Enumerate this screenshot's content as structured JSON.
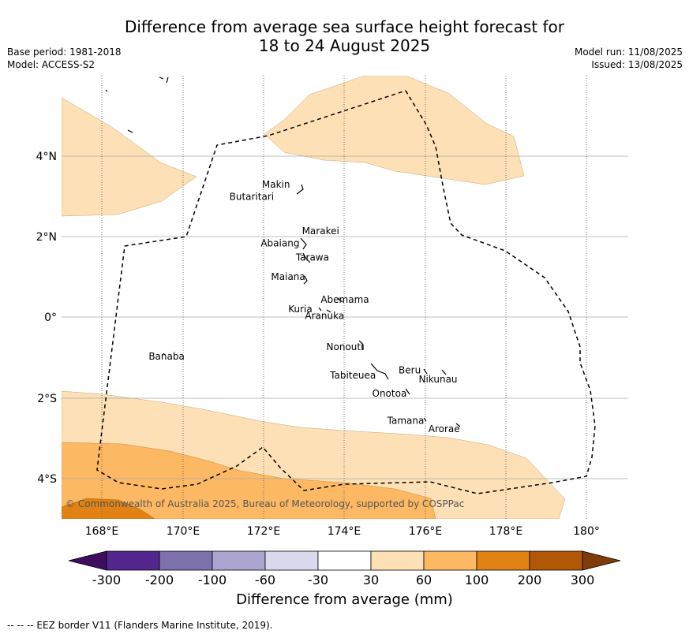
{
  "title_line1": "Difference from average sea surface height forecast for",
  "title_line2": "18 to 24 August 2025",
  "meta_left": {
    "base_period": "Base period: 1981-2018",
    "model": "Model: ACCESS-S2"
  },
  "meta_right": {
    "model_run": "Model run: 11/08/2025",
    "issued": "Issued: 13/08/2025"
  },
  "map": {
    "lon_ticks": [
      "168°E",
      "170°E",
      "172°E",
      "174°E",
      "176°E",
      "178°E",
      "180°"
    ],
    "lat_ticks": [
      "4°N",
      "2°N",
      "0°",
      "2°S",
      "4°S"
    ],
    "copyright": "© Commonwealth of Australia 2025, Bureau of Meteorology, supported by COSPPac",
    "places": [
      {
        "name": "Makin",
        "lon": 172.3,
        "lat": 3.2
      },
      {
        "name": "Butaritari",
        "lon": 171.7,
        "lat": 2.9
      },
      {
        "name": "Marakei",
        "lon": 173.4,
        "lat": 2.05
      },
      {
        "name": "Abaiang",
        "lon": 172.4,
        "lat": 1.75
      },
      {
        "name": "Tarawa",
        "lon": 173.2,
        "lat": 1.4
      },
      {
        "name": "Maiana",
        "lon": 172.6,
        "lat": 0.92
      },
      {
        "name": "Abemama",
        "lon": 174.0,
        "lat": 0.35
      },
      {
        "name": "Kuria",
        "lon": 172.9,
        "lat": 0.12
      },
      {
        "name": "Aranuka",
        "lon": 173.5,
        "lat": -0.05
      },
      {
        "name": "Banaba",
        "lon": 169.6,
        "lat": -1.05
      },
      {
        "name": "Nonouti",
        "lon": 174.0,
        "lat": -0.82
      },
      {
        "name": "Beru",
        "lon": 175.6,
        "lat": -1.4
      },
      {
        "name": "Nikunau",
        "lon": 176.3,
        "lat": -1.62
      },
      {
        "name": "Tabiteuea",
        "lon": 174.2,
        "lat": -1.52
      },
      {
        "name": "Onotoa",
        "lon": 175.1,
        "lat": -1.97
      },
      {
        "name": "Tamana",
        "lon": 175.5,
        "lat": -2.65
      },
      {
        "name": "Arorae",
        "lon": 176.45,
        "lat": -2.85
      }
    ]
  },
  "colorbar": {
    "ticks": [
      "-300",
      "-200",
      "-100",
      "-60",
      "-30",
      "30",
      "60",
      "100",
      "200",
      "300"
    ],
    "colors": [
      "#3f0c5f",
      "#54278f",
      "#7e71ad",
      "#aba5d0",
      "#d9d9ed",
      "#ffffff",
      "#fee0b6",
      "#fdb863",
      "#e08214",
      "#b35806",
      "#7f3b08"
    ],
    "label": "Difference from average (mm)"
  },
  "footer": "-- -- -- EEZ border V11 (Flanders Marine Institute, 2019)."
}
